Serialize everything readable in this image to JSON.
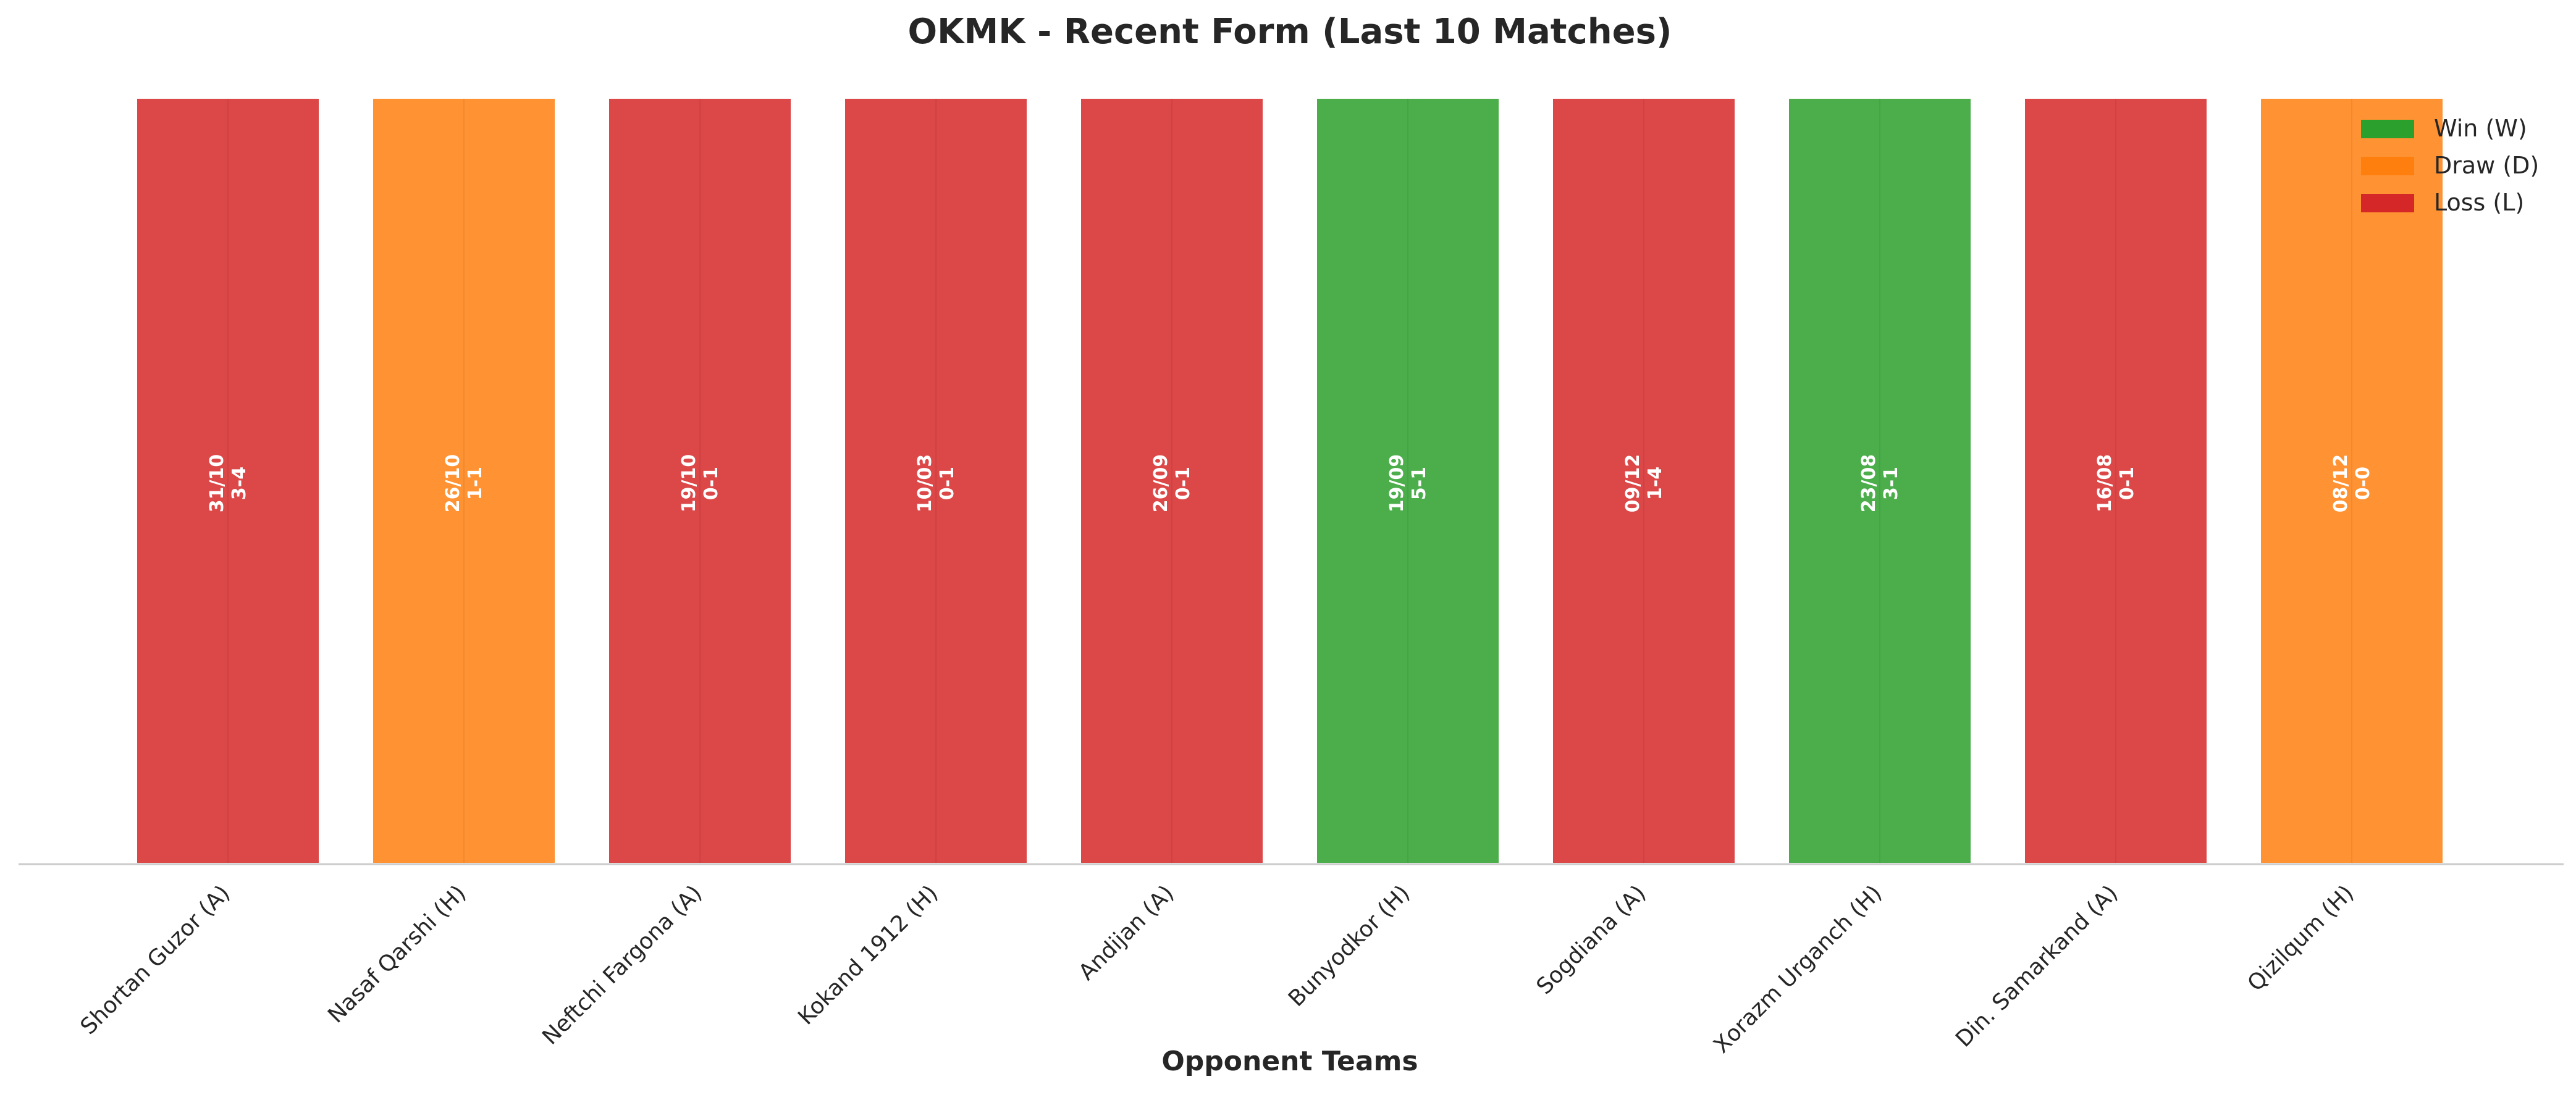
{
  "chart_data": {
    "type": "bar",
    "title": "OKMK - Recent Form (Last 10 Matches)",
    "xlabel": "Opponent Teams",
    "ylabel": "",
    "categories": [
      "Shortan Guzor (A)",
      "Nasaf Qarshi (H)",
      "Neftchi Fargona (A)",
      "Kokand 1912 (H)",
      "Andijan (A)",
      "Bunyodkor (H)",
      "Sogdiana (A)",
      "Xorazm Urganch (H)",
      "Din. Samarkand (A)",
      "Qizilqum (H)"
    ],
    "values": [
      1,
      1,
      1,
      1,
      1,
      1,
      1,
      1,
      1,
      1
    ],
    "results": [
      "L",
      "D",
      "L",
      "L",
      "L",
      "W",
      "L",
      "W",
      "L",
      "D"
    ],
    "dates": [
      "31/10",
      "26/10",
      "19/10",
      "10/03",
      "26/09",
      "19/09",
      "09/12",
      "23/08",
      "16/08",
      "08/12"
    ],
    "scores": [
      "3-4",
      "1-1",
      "0-1",
      "0-1",
      "0-1",
      "5-1",
      "1-4",
      "3-1",
      "0-1",
      "0-0"
    ],
    "ylim": [
      0,
      1
    ],
    "grid": false,
    "y_axis_visible": false,
    "legend": {
      "placement": "top-right",
      "entries": [
        {
          "key": "W",
          "label": "Win (W)",
          "color": "#2ca02c"
        },
        {
          "key": "D",
          "label": "Draw (D)",
          "color": "#ff7f0e"
        },
        {
          "key": "L",
          "label": "Loss (L)",
          "color": "#d62728"
        }
      ]
    }
  },
  "colors": {
    "W": "#2ca02c",
    "D": "#ff7f0e",
    "L": "#d62728",
    "title_text": "#262626",
    "axis_line": "#cccccc",
    "bar_edge": "#ffffff",
    "bar_label_text": "#ffffff"
  }
}
